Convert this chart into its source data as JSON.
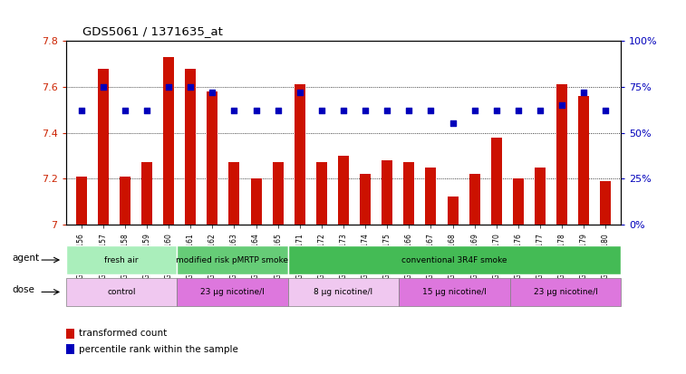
{
  "title": "GDS5061 / 1371635_at",
  "samples": [
    "GSM1217156",
    "GSM1217157",
    "GSM1217158",
    "GSM1217159",
    "GSM1217160",
    "GSM1217161",
    "GSM1217162",
    "GSM1217163",
    "GSM1217164",
    "GSM1217165",
    "GSM1217171",
    "GSM1217172",
    "GSM1217173",
    "GSM1217174",
    "GSM1217175",
    "GSM1217166",
    "GSM1217167",
    "GSM1217168",
    "GSM1217169",
    "GSM1217170",
    "GSM1217176",
    "GSM1217177",
    "GSM1217178",
    "GSM1217179",
    "GSM1217180"
  ],
  "transformed_counts": [
    7.21,
    7.68,
    7.21,
    7.27,
    7.73,
    7.68,
    7.58,
    7.27,
    7.2,
    7.27,
    7.61,
    7.27,
    7.3,
    7.22,
    7.28,
    7.27,
    7.25,
    7.12,
    7.22,
    7.38,
    7.2,
    7.25,
    7.61,
    7.56,
    7.19
  ],
  "percentile_ranks": [
    62,
    75,
    62,
    62,
    75,
    75,
    72,
    62,
    62,
    62,
    72,
    62,
    62,
    62,
    62,
    62,
    62,
    55,
    62,
    62,
    62,
    62,
    65,
    72,
    62
  ],
  "ylim_left": [
    7.0,
    7.8
  ],
  "ylim_right": [
    0,
    100
  ],
  "yticks_left": [
    7.0,
    7.2,
    7.4,
    7.6,
    7.8
  ],
  "yticks_right": [
    0,
    25,
    50,
    75,
    100
  ],
  "bar_color": "#cc1100",
  "dot_color": "#0000bb",
  "bar_width": 0.5,
  "agent_groups": [
    {
      "label": "fresh air",
      "start": 0,
      "end": 5,
      "color": "#aaeebb"
    },
    {
      "label": "modified risk pMRTP smoke",
      "start": 5,
      "end": 10,
      "color": "#66cc77"
    },
    {
      "label": "conventional 3R4F smoke",
      "start": 10,
      "end": 25,
      "color": "#44bb55"
    }
  ],
  "dose_groups": [
    {
      "label": "control",
      "start": 0,
      "end": 5,
      "color": "#f0c8f0"
    },
    {
      "label": "23 μg nicotine/l",
      "start": 5,
      "end": 10,
      "color": "#dd77dd"
    },
    {
      "label": "8 μg nicotine/l",
      "start": 10,
      "end": 15,
      "color": "#f0c8f0"
    },
    {
      "label": "15 μg nicotine/l",
      "start": 15,
      "end": 20,
      "color": "#dd77dd"
    },
    {
      "label": "23 μg nicotine/l",
      "start": 20,
      "end": 25,
      "color": "#dd77dd"
    }
  ],
  "legend_items": [
    {
      "label": "transformed count",
      "color": "#cc1100"
    },
    {
      "label": "percentile rank within the sample",
      "color": "#0000bb"
    }
  ],
  "bg_color": "#ffffff"
}
